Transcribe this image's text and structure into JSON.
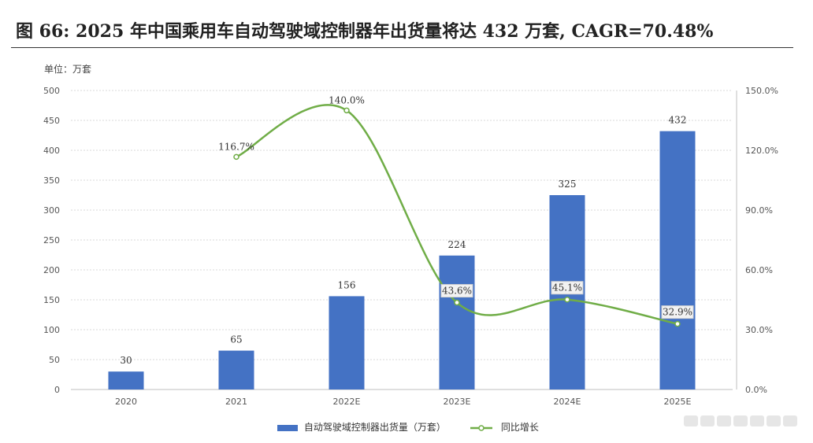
{
  "title": "图 66: 2025 年中国乘用车自动驾驶域控制器年出货量将达 432 万套, CAGR=70.48%",
  "unit": "单位：万套",
  "colors": {
    "bar": "#4472C4",
    "line": "#70AD47",
    "grid": "#d9d9d9"
  },
  "chart_data": {
    "type": "bar+line",
    "categories": [
      "2020",
      "2021",
      "2022E",
      "2023E",
      "2024E",
      "2025E"
    ],
    "series": [
      {
        "name": "自动驾驶域控制器出货量（万套）",
        "type": "bar",
        "axis": "left",
        "values": [
          30,
          65,
          156,
          224,
          325,
          432
        ],
        "labels": [
          "30",
          "65",
          "156",
          "224",
          "325",
          "432"
        ]
      },
      {
        "name": "同比增长",
        "type": "line",
        "axis": "right",
        "values": [
          null,
          116.7,
          140.0,
          43.6,
          45.1,
          32.9
        ],
        "labels": [
          "",
          "116.7%",
          "140.0%",
          "43.6%",
          "45.1%",
          "32.9%"
        ]
      }
    ],
    "ylim": [
      0,
      500
    ],
    "yticks": [
      "0",
      "50",
      "100",
      "150",
      "200",
      "250",
      "300",
      "350",
      "400",
      "450",
      "500"
    ],
    "y2lim": [
      0,
      150
    ],
    "y2ticks": [
      "0.0%",
      "30.0%",
      "60.0%",
      "90.0%",
      "120.0%",
      "150.0%"
    ],
    "grid": true,
    "legend_position": "bottom"
  }
}
